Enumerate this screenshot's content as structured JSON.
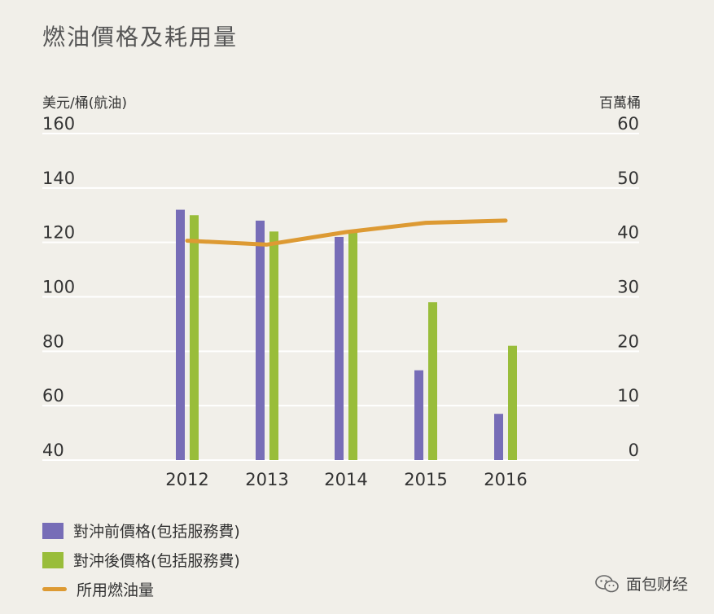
{
  "title": "燃油價格及耗用量",
  "watermark": "面包财经",
  "colors": {
    "pre_hedge": "#776db7",
    "post_hedge": "#99bd3a",
    "consumption": "#dd9a33",
    "grid": "#ffffff",
    "background": "#f1efe9"
  },
  "chart_data": {
    "type": "bar",
    "categories": [
      "2012",
      "2013",
      "2014",
      "2015",
      "2016"
    ],
    "series": [
      {
        "name": "對沖前價格(包括服務費)",
        "type": "bar",
        "axis": "left",
        "values": [
          132,
          128,
          122,
          73,
          57
        ]
      },
      {
        "name": "對沖後價格(包括服務費)",
        "type": "bar",
        "axis": "left",
        "values": [
          130,
          124,
          124,
          98,
          82
        ]
      },
      {
        "name": "所用燃油量",
        "type": "line",
        "axis": "right",
        "values": [
          40.3,
          39.6,
          41.9,
          43.6,
          44
        ]
      }
    ],
    "ylabel_left": "美元/桶(航油)",
    "ylabel_right": "百萬桶",
    "ylim_left": [
      40,
      160
    ],
    "ylim_right": [
      0,
      60
    ],
    "yticks_left": [
      160,
      140,
      120,
      100,
      80,
      60,
      40
    ],
    "yticks_right": [
      60,
      50,
      40,
      30,
      20,
      10,
      0
    ],
    "grid": true,
    "legend_position": "bottom-left"
  }
}
